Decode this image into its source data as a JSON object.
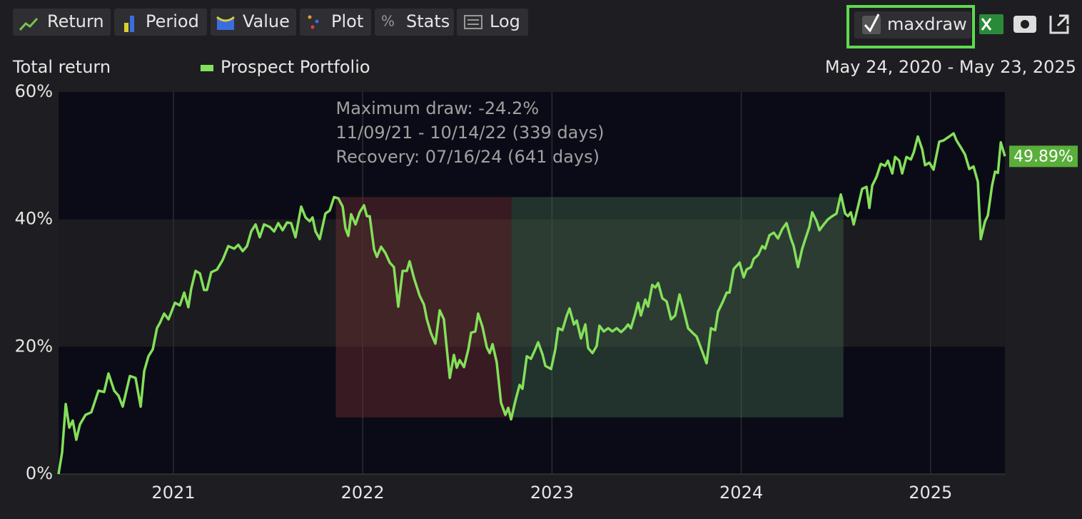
{
  "toolbar": {
    "buttons": [
      "Return",
      "Period",
      "Value",
      "Plot",
      "Stats",
      "Log"
    ],
    "checkbox": "maxdraw"
  },
  "chart_data": {
    "type": "line",
    "ylabel": "Total return",
    "subtitle": "May 24, 2020 - May 23, 2025",
    "annotation": [
      "Maximum draw: -24.2%",
      "11/09/21 - 10/14/22 (339 days)",
      "Recovery: 07/16/24 (641 days)"
    ],
    "max_drawdown": {
      "start": 2021.858,
      "trough": 2022.786,
      "recovery": 2024.54,
      "peak_value": 43.5,
      "trough_value": 8.9
    },
    "last_value_label": "49.89%",
    "xlim": [
      2020.393,
      2025.393
    ],
    "xticks": [
      2021,
      2022,
      2023,
      2024,
      2025
    ],
    "ylim": [
      0,
      60
    ],
    "yticks": [
      {
        "value": 0,
        "label": "0%"
      },
      {
        "value": 20,
        "label": "20%"
      },
      {
        "value": 40,
        "label": "40%"
      },
      {
        "value": 60,
        "label": "60%"
      }
    ],
    "grid": true,
    "x": [
      2020.393,
      2020.412,
      2020.431,
      2020.45,
      2020.468,
      2020.487,
      2020.506,
      2020.536,
      2020.566,
      2020.604,
      2020.634,
      2020.657,
      2020.687,
      2020.71,
      2020.732,
      2020.747,
      2020.77,
      2020.8,
      2020.827,
      2020.846,
      2020.868,
      2020.891,
      2020.913,
      2020.928,
      2020.951,
      2020.974,
      2021.008,
      2021.034,
      2021.057,
      2021.079,
      2021.094,
      2021.117,
      2021.14,
      2021.162,
      2021.177,
      2021.2,
      2021.23,
      2021.26,
      2021.29,
      2021.321,
      2021.343,
      2021.366,
      2021.389,
      2021.411,
      2021.434,
      2021.456,
      2021.479,
      2021.509,
      2021.532,
      2021.554,
      2021.577,
      2021.6,
      2021.622,
      2021.645,
      2021.675,
      2021.698,
      2021.72,
      2021.735,
      2021.751,
      2021.773,
      2021.803,
      2021.826,
      2021.849,
      2021.871,
      2021.894,
      2021.909,
      2021.924,
      2021.939,
      2021.962,
      2021.984,
      2022.007,
      2022.022,
      2022.037,
      2022.06,
      2022.075,
      2022.097,
      2022.12,
      2022.143,
      2022.165,
      2022.188,
      2022.211,
      2022.233,
      2022.248,
      2022.271,
      2022.301,
      2022.324,
      2022.339,
      2022.361,
      2022.384,
      2022.407,
      2022.429,
      2022.444,
      2022.46,
      2022.482,
      2022.497,
      2022.512,
      2022.535,
      2022.558,
      2022.573,
      2022.595,
      2022.61,
      2022.633,
      2022.656,
      2022.671,
      2022.686,
      2022.708,
      2022.731,
      2022.754,
      2022.769,
      2022.784,
      2022.806,
      2022.829,
      2022.844,
      2022.867,
      2022.889,
      2022.912,
      2022.927,
      2022.95,
      2022.965,
      2022.995,
      2023.018,
      2023.033,
      2023.055,
      2023.078,
      2023.093,
      2023.116,
      2023.131,
      2023.153,
      2023.176,
      2023.191,
      2023.214,
      2023.236,
      2023.251,
      2023.274,
      2023.297,
      2023.319,
      2023.342,
      2023.365,
      2023.387,
      2023.402,
      2023.417,
      2023.44,
      2023.455,
      2023.47,
      2023.493,
      2023.508,
      2023.53,
      2023.546,
      2023.561,
      2023.583,
      2023.606,
      2023.629,
      2023.651,
      2023.674,
      2023.696,
      2023.719,
      2023.742,
      2023.764,
      2023.787,
      2023.817,
      2023.84,
      2023.862,
      2023.877,
      2023.9,
      2023.923,
      2023.938,
      2023.96,
      2023.991,
      2024.013,
      2024.028,
      2024.051,
      2024.066,
      2024.089,
      2024.111,
      2024.126,
      2024.149,
      2024.172,
      2024.194,
      2024.217,
      2024.239,
      2024.262,
      2024.277,
      2024.3,
      2024.322,
      2024.345,
      2024.36,
      2024.375,
      2024.398,
      2024.413,
      2024.436,
      2024.458,
      2024.481,
      2024.503,
      2024.526,
      2024.549,
      2024.564,
      2024.579,
      2024.594,
      2024.617,
      2024.639,
      2024.662,
      2024.677,
      2024.692,
      2024.715,
      2024.737,
      2024.76,
      2024.775,
      2024.798,
      2024.813,
      2024.835,
      2024.85,
      2024.873,
      2024.896,
      2024.911,
      2024.933,
      2024.956,
      2024.971,
      2024.994,
      2025.016,
      2025.046,
      2025.069,
      2025.099,
      2025.122,
      2025.137,
      2025.16,
      2025.182,
      2025.205,
      2025.227,
      2025.25,
      2025.265,
      2025.288,
      2025.303,
      2025.325,
      2025.341,
      2025.356,
      2025.371,
      2025.393
    ],
    "series": [
      {
        "name": "Prospect Portfolio",
        "color": "#84e05a",
        "values": [
          0,
          3.4,
          11,
          7.3,
          8.4,
          5.4,
          7.8,
          9.3,
          9.7,
          13.1,
          12.9,
          15.8,
          13.1,
          12.3,
          10.6,
          12.5,
          15.4,
          15.1,
          10.6,
          16.2,
          18.5,
          19.6,
          22.9,
          23.7,
          25.2,
          24.3,
          26.9,
          26.5,
          28.5,
          26.2,
          29.1,
          31.9,
          31.5,
          28.9,
          28.9,
          31.7,
          32.1,
          33.6,
          35.8,
          35.4,
          36,
          35,
          35.8,
          38.1,
          39.2,
          37.2,
          39.2,
          38.8,
          38.1,
          39.4,
          38.3,
          39.5,
          39.4,
          37.2,
          42,
          40.3,
          39.7,
          40.3,
          38.1,
          36.9,
          40.9,
          41.4,
          43.5,
          43.3,
          42,
          38.6,
          37.4,
          40.8,
          39.2,
          41.1,
          42.2,
          40.5,
          40.5,
          35.3,
          34.1,
          35.7,
          34.7,
          33.2,
          32.5,
          26.3,
          31.9,
          31.9,
          33.4,
          30.8,
          28,
          26.6,
          24.3,
          22.1,
          20.5,
          25.7,
          24.3,
          19.8,
          15.1,
          18.7,
          16.7,
          17.9,
          16.8,
          19.6,
          22.2,
          22.4,
          25.2,
          23.1,
          19.9,
          19,
          20.4,
          17.6,
          11.2,
          9.3,
          10.4,
          8.6,
          11.4,
          14,
          13.4,
          18.5,
          18.1,
          19.6,
          20.7,
          18.8,
          17,
          16.5,
          19.6,
          22.9,
          22.6,
          24.9,
          26,
          23.5,
          24.1,
          21.3,
          23.5,
          19.8,
          19,
          20.1,
          23.3,
          22.4,
          22.9,
          22.4,
          22.9,
          22.3,
          22.9,
          23.5,
          22.9,
          25.2,
          26.9,
          24.9,
          27.4,
          26.3,
          29.7,
          29.3,
          30,
          27.6,
          27.1,
          24.3,
          24.9,
          28.2,
          25.7,
          22.9,
          22.2,
          21.6,
          19.8,
          17.4,
          22.9,
          22.6,
          25.5,
          26.9,
          28.5,
          28.5,
          32.2,
          33.2,
          30.9,
          32.1,
          32.5,
          33.8,
          34.4,
          35.8,
          35.4,
          37.5,
          37.9,
          37,
          38.5,
          39.4,
          37,
          35.8,
          32.5,
          35.4,
          37.5,
          38.8,
          41.1,
          39.7,
          38.3,
          39.2,
          40,
          40.5,
          40.9,
          43.9,
          40.9,
          40.5,
          41.1,
          39.2,
          42,
          44.8,
          45.1,
          41.8,
          45.3,
          46.7,
          48.7,
          48.4,
          49.2,
          47.2,
          49.8,
          49.2,
          47.2,
          49.8,
          49.4,
          50.5,
          53,
          51,
          48.5,
          48.9,
          47.8,
          52.2,
          52.4,
          53,
          53.5,
          52.4,
          51.3,
          50.2,
          47.9,
          48.3,
          45.9,
          36.9,
          39.7,
          40.6,
          45.3,
          47.5,
          47.3,
          52.1,
          49.89
        ]
      }
    ]
  }
}
